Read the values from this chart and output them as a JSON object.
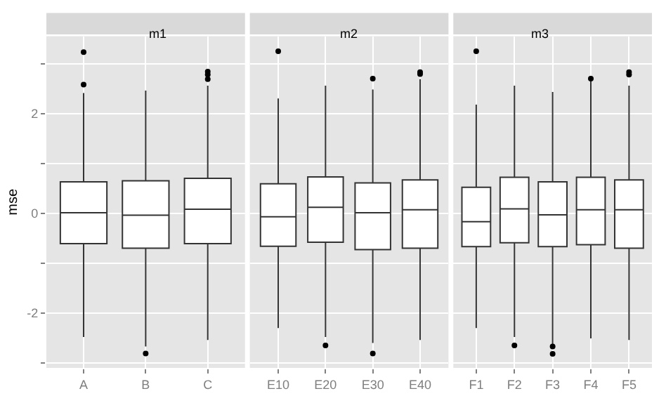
{
  "chart_data": [
    {
      "type": "box",
      "title": "m1",
      "ylabel": "mse",
      "categories": [
        "A",
        "B",
        "C"
      ],
      "ylim": [
        -3.1,
        3.55
      ],
      "yticks": [
        {
          "value": -3,
          "label": null
        },
        -2,
        {
          "value": -1,
          "label": null
        },
        0,
        {
          "value": 1,
          "label": null
        },
        2,
        {
          "value": 3,
          "label": null
        }
      ],
      "grid": true,
      "boxes": [
        {
          "low": -2.48,
          "q1": -0.61,
          "median": 0.01,
          "q3": 0.63,
          "high": 2.41,
          "outliers": [
            3.23,
            2.58
          ]
        },
        {
          "low": -2.67,
          "q1": -0.7,
          "median": -0.04,
          "q3": 0.65,
          "high": 2.46,
          "outliers": [
            -2.81
          ]
        },
        {
          "low": -2.54,
          "q1": -0.61,
          "median": 0.08,
          "q3": 0.7,
          "high": 2.56,
          "outliers": [
            2.84,
            2.78,
            2.69
          ]
        }
      ]
    },
    {
      "type": "box",
      "title": "m2",
      "categories": [
        "E10",
        "E20",
        "E30",
        "E40"
      ],
      "ylim": [
        -3.1,
        3.55
      ],
      "yticks": [
        {
          "value": -3,
          "label": null
        },
        -2,
        {
          "value": -1,
          "label": null
        },
        0,
        {
          "value": 1,
          "label": null
        },
        2,
        {
          "value": 3,
          "label": null
        }
      ],
      "grid": true,
      "tick_labels": "x",
      "boxes": [
        {
          "low": -2.3,
          "q1": -0.66,
          "median": -0.07,
          "q3": 0.59,
          "high": 2.3,
          "outliers": [
            3.25
          ]
        },
        {
          "low": -2.48,
          "q1": -0.58,
          "median": 0.12,
          "q3": 0.73,
          "high": 2.56,
          "outliers": [
            -2.65
          ]
        },
        {
          "low": -2.6,
          "q1": -0.73,
          "median": 0.01,
          "q3": 0.61,
          "high": 2.48,
          "outliers": [
            2.7,
            -2.81
          ]
        },
        {
          "low": -2.54,
          "q1": -0.7,
          "median": 0.07,
          "q3": 0.67,
          "high": 2.69,
          "outliers": [
            2.83,
            2.79
          ]
        }
      ]
    },
    {
      "type": "box",
      "title": "m3",
      "categories": [
        "F1",
        "F2",
        "F3",
        "F4",
        "F5"
      ],
      "ylim": [
        -3.1,
        3.55
      ],
      "yticks": [
        {
          "value": -3,
          "label": null
        },
        -2,
        {
          "value": -1,
          "label": null
        },
        0,
        {
          "value": 1,
          "label": null
        },
        2,
        {
          "value": 3,
          "label": null
        }
      ],
      "grid": true,
      "tick_labels": "x",
      "boxes": [
        {
          "low": -2.3,
          "q1": -0.67,
          "median": -0.17,
          "q3": 0.52,
          "high": 2.18,
          "outliers": [
            3.25
          ]
        },
        {
          "low": -2.48,
          "q1": -0.59,
          "median": 0.09,
          "q3": 0.72,
          "high": 2.56,
          "outliers": [
            -2.65
          ]
        },
        {
          "low": -2.62,
          "q1": -0.67,
          "median": -0.03,
          "q3": 0.63,
          "high": 2.43,
          "outliers": [
            -2.67,
            -2.82
          ]
        },
        {
          "low": -2.51,
          "q1": -0.63,
          "median": 0.07,
          "q3": 0.72,
          "high": 2.65,
          "outliers": [
            2.7
          ]
        },
        {
          "low": -2.54,
          "q1": -0.7,
          "median": 0.07,
          "q3": 0.67,
          "high": 2.56,
          "outliers": [
            2.83,
            2.78
          ]
        }
      ]
    }
  ]
}
